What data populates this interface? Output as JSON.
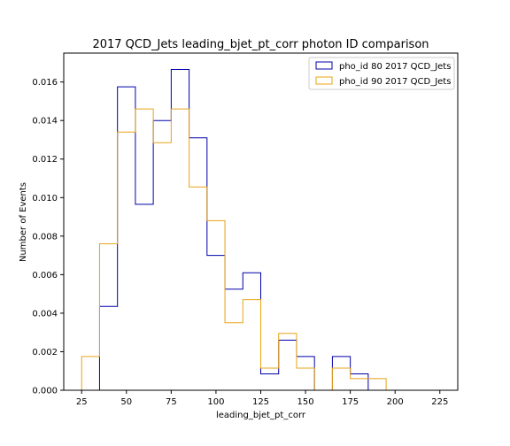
{
  "chart_data": {
    "type": "histogram",
    "title": "2017 QCD_Jets leading_bjet_pt_corr photon ID comparison",
    "xlabel": "leading_bjet_pt_corr",
    "ylabel": "Number of Events",
    "xlim": [
      15,
      235
    ],
    "ylim": [
      0,
      0.0175
    ],
    "grid": false,
    "legend_position": "top-right",
    "x_ticks": [
      "25",
      "50",
      "75",
      "100",
      "125",
      "150",
      "175",
      "200",
      "225"
    ],
    "y_ticks": [
      "0.000",
      "0.002",
      "0.004",
      "0.006",
      "0.008",
      "0.010",
      "0.012",
      "0.014",
      "0.016"
    ],
    "bin_edges": [
      25,
      35,
      45,
      55,
      65,
      75,
      85,
      95,
      105,
      115,
      125,
      135,
      145,
      155,
      165,
      175,
      185,
      195
    ],
    "series": [
      {
        "name": "pho_id 80 2017 QCD_Jets",
        "color": "#0000aa",
        "values": [
          0.0,
          0.00435,
          0.01575,
          0.00965,
          0.014,
          0.01665,
          0.0131,
          0.007,
          0.00525,
          0.0061,
          0.00085,
          0.0026,
          0.00175,
          0.0,
          0.00175,
          0.00085,
          0.0
        ]
      },
      {
        "name": "pho_id 90 2017 QCD_Jets",
        "color": "#e8a317",
        "values": [
          0.00175,
          0.0076,
          0.0134,
          0.0146,
          0.01285,
          0.0146,
          0.01055,
          0.0088,
          0.0035,
          0.0047,
          0.00115,
          0.00295,
          0.00115,
          0.0,
          0.00115,
          0.0006,
          0.0006
        ]
      }
    ]
  }
}
